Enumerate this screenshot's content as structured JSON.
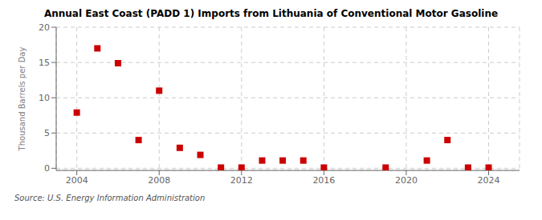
{
  "chart_data": {
    "type": "scatter",
    "title": "Annual East Coast (PADD 1) Imports from Lithuania of Conventional Motor Gasoline",
    "ylabel": "Thousand Barrels per Day",
    "annotations": [
      "Source: U.S. Energy Information Administration"
    ],
    "x": [
      2004,
      2005,
      2006,
      2007,
      2008,
      2009,
      2010,
      2011,
      2012,
      2013,
      2014,
      2015,
      2016,
      2019,
      2021,
      2022,
      2023,
      2024
    ],
    "values": [
      7.9,
      17.0,
      14.9,
      4.0,
      11.0,
      2.9,
      1.9,
      0.1,
      0.1,
      1.1,
      1.1,
      1.1,
      0.1,
      0.1,
      1.1,
      4.0,
      0.1,
      0.1
    ],
    "color": "#cc0000",
    "marker": "square",
    "xlim": [
      2003,
      2025.5
    ],
    "ylim": [
      -0.3,
      20
    ],
    "xticks": [
      2004,
      2008,
      2012,
      2016,
      2020,
      2024
    ],
    "yticks": [
      0,
      5,
      10,
      15,
      20
    ],
    "grid": true
  }
}
